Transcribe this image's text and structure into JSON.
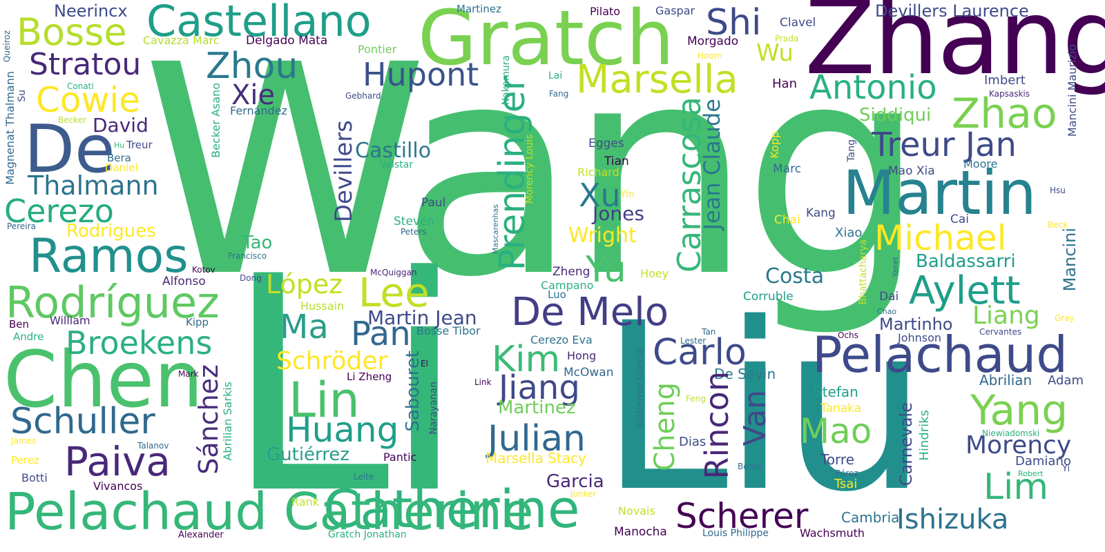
{
  "words": {
    "wang": "Wang",
    "li": "Li",
    "liu": "Liu",
    "zhang": "Zhang",
    "gratch": "Gratch",
    "chen": "Chen",
    "martin": "Martin",
    "pelachaud": "Pelachaud",
    "catherine": "Catherine",
    "pelachaud_catherine": "Pelachaud Catherine",
    "castellano": "Castellano",
    "de": "De",
    "ramos": "Ramos",
    "rodriguez": "Rodríguez",
    "lin": "Lin",
    "lee": "Lee",
    "de_melo": "De Melo",
    "aylett": "Aylett",
    "yang": "Yang",
    "zhao": "Zhao",
    "marsella": "Marsella",
    "bosse": "Bosse",
    "zhou": "Zhou",
    "shi": "Shi",
    "hupont": "Hupont",
    "antonio": "Antonio",
    "treur_jan": "Treur Jan",
    "michael": "Michael",
    "cowie": "Cowie",
    "stratou": "Stratou",
    "xie": "Xie",
    "cerezo": "Cerezo",
    "thalmann": "Thalmann",
    "schuller": "Schuller",
    "paiva": "Paiva",
    "broekens": "Broekens",
    "ma": "Ma",
    "pan": "Pan",
    "kim": "Kim",
    "carlo": "Carlo",
    "julian": "Julian",
    "huang": "Huang",
    "jiang": "Jiang",
    "mao": "Mao",
    "morency": "Morency",
    "lim": "Lim",
    "ishizuka": "Ishizuka",
    "scherer": "Scherer",
    "yu": "Yu",
    "xu": "Xu",
    "carrascosa": "Carrascosa",
    "prendinger": "Prendinger",
    "rincon": "Rincon",
    "van": "Van",
    "cheng": "Cheng",
    "sanchez": "Sánchez",
    "jean_claude": "Jean Claude",
    "devillers": "Devillers",
    "lopez": "López",
    "liang": "Liang",
    "david": "David",
    "schroder": "Schröder",
    "castillo": "Castillo",
    "martin_jean": "Martin Jean",
    "baldassarri": "Baldassarri",
    "siddiqui": "Siddiqui",
    "devillers_laurence": "Devillers Laurence",
    "neerincx": "Neerincx",
    "wu": "Wu",
    "costa": "Costa",
    "martinho": "Martinho",
    "jones": "Jones",
    "wright": "Wright",
    "gutierrez": "Gutiérrez",
    "martinez_big": "Martinez",
    "garcia": "Garcia",
    "marsella_stacy": "Marsella Stacy",
    "mancini": "Mancini",
    "mancini_maurizio": "Mancini Maurizio",
    "rodrigues": "Rodrigues",
    "tao": "Tao",
    "sabouret": "Sabouret",
    "carnevale": "Carnevale",
    "hindriks": "Hindriks",
    "delgado_mata": "Delgado Mata",
    "cavazza_marc": "Cavazza Marc",
    "magnenat_thalmann": "Magnenat Thalmann",
    "becker_asano": "Becker Asano",
    "fernandez": "Fernández",
    "abrilian_sarkis": "Abrilian Sarkis",
    "gutierrez_garcia": "Gutierrez Garcia",
    "bhattacharya": "Bhattacharya",
    "morency_louis": "Morency Louis",
    "nakamura": "Nakamura",
    "mascarenhas": "Mascarenhas",
    "narayanan": "Narayanan",
    "tang": "Tang",
    "kopp": "Kopp",
    "abrilian": "Abrilian",
    "adam": "Adam",
    "de_sevin": "De Sevin",
    "stefan": "Stefan",
    "tanaka": "Tanaka",
    "dias": "Dias",
    "torre": "Torre",
    "tsai": "Tsai",
    "cambria": "Cambria",
    "damiano": "Damiano",
    "yi": "Yi",
    "robert": "Robert",
    "niewiadomski": "Niewiadomski",
    "johnson": "Johnson",
    "cervantes": "Cervantes",
    "gray": "Gray",
    "yanet": "Yanet",
    "beck": "Beck",
    "ochs": "Ochs",
    "lester": "Lester",
    "tan": "Tan",
    "chao": "Chao",
    "dai": "Dai",
    "corruble": "Corruble",
    "xiao": "Xiao",
    "kang": "Kang",
    "cai": "Cai",
    "chai": "Chai",
    "moore": "Moore",
    "hsu": "Hsu",
    "marc": "Marc",
    "mao_xia": "Mao Xia",
    "imbert": "Imbert",
    "kapsaskis": "Kapsaskis",
    "han": "Han",
    "clavel": "Clavel",
    "prada": "Prada",
    "hoorn": "Hoorn",
    "morgado": "Morgado",
    "gaspar": "Gaspar",
    "pilato": "Pilato",
    "martinez_small": "Martinez",
    "pontier": "Pontier",
    "gebhard": "Gebhard",
    "lai": "Lai",
    "fang": "Fang",
    "egges": "Egges",
    "tian": "Tian",
    "richard": "Richard",
    "yin": "Yin",
    "paul": "Paul",
    "steven": "Steven",
    "peters": "Peters",
    "valstar": "Valstar",
    "conati": "Conati",
    "su": "Su",
    "queiroz": "Queiroz",
    "becker": "Becker",
    "hu": "Hu",
    "treur": "Treur",
    "daniel": "Daniel",
    "bera": "Bera",
    "pereira": "Pereira",
    "kotov": "Kotov",
    "alfonso": "Alfonso",
    "francisco": "Francisco",
    "dong": "Dong",
    "mcquiggan": "McQuiggan",
    "hussain": "Hussain",
    "zheng": "Zheng",
    "campano": "Campano",
    "luo": "Luo",
    "hoey": "Hoey",
    "ben": "Ben",
    "william": "William",
    "kipp": "Kipp",
    "andre": "Andre",
    "bosse_tibor": "Bosse Tibor",
    "cerezo_eva": "Cerezo Eva",
    "hong": "Hong",
    "el": "El",
    "li_zheng": "Li Zheng",
    "mcowan": "McOwan",
    "mark": "Mark",
    "link": "Link",
    "feng": "Feng",
    "james": "James",
    "talanov": "Talanov",
    "perez": "Perez",
    "pantic": "Pantic",
    "botti": "Botti",
    "vivancos": "Vivancos",
    "leite": "Leite",
    "rank": "Rank",
    "jonker": "Jonker",
    "novais": "Novais",
    "bente": "Bente",
    "perez_accent": "Pérez",
    "alexander": "Alexander",
    "gratch_jonathan": "Gratch Jonathan",
    "manocha": "Manocha",
    "louis_philippe": "Louis Philippe",
    "wachsmuth": "Wachsmuth"
  },
  "palette": {
    "dark_purple": "#440154",
    "purple": "#482878",
    "indigo": "#3e4a89",
    "blue": "#31688e",
    "teal": "#26828e",
    "teal_green": "#1f9e89",
    "green": "#35b779",
    "bright_green": "#6ece58",
    "lime": "#b5de2b",
    "yellow": "#fde725"
  }
}
